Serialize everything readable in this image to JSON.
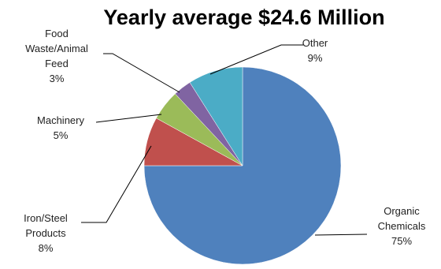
{
  "chart_data": {
    "type": "pie",
    "title": "Yearly average $24.6 Million",
    "series": [
      {
        "values": [
          75,
          8,
          5,
          3,
          9
        ],
        "categories": [
          "Organic Chemicals",
          "Iron/Steel Products",
          "Machinery",
          "Food Waste/Animal Feed",
          "Other"
        ]
      }
    ],
    "slices": [
      {
        "label_lines": [
          "Organic",
          "Chemicals",
          "75%"
        ],
        "value": 75,
        "color": "#4F81BD"
      },
      {
        "label_lines": [
          "Iron/Steel",
          "Products",
          "8%"
        ],
        "value": 8,
        "color": "#C0504D"
      },
      {
        "label_lines": [
          "Machinery",
          "5%"
        ],
        "value": 5,
        "color": "#9BBB59"
      },
      {
        "label_lines": [
          "Food",
          "Waste/Animal",
          "Feed",
          "3%"
        ],
        "value": 3,
        "color": "#8064A2"
      },
      {
        "label_lines": [
          "Other",
          "9%"
        ],
        "value": 9,
        "color": "#4BACC6"
      }
    ],
    "legend": "none",
    "data_labels": "outside with leader lines"
  }
}
